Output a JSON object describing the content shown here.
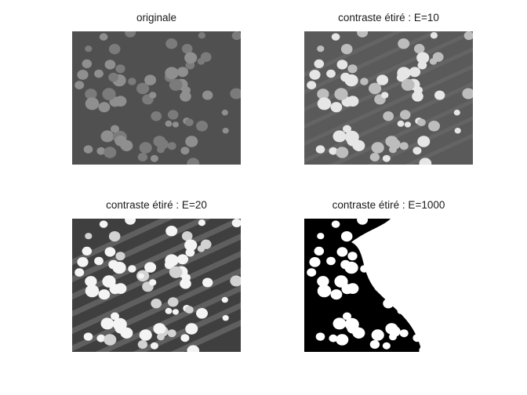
{
  "figure": {
    "panels": [
      {
        "title": "originale",
        "contrast": "low",
        "background_color": "#505050",
        "nucleus_color": "#8a8a8a"
      },
      {
        "title": "contraste étiré : E=10",
        "contrast": "medium",
        "background_color": "#5a5a5a",
        "nucleus_color": "#e6e6e6"
      },
      {
        "title": "contraste étiré : E=20",
        "contrast": "high",
        "background_color": "#3f3f3f",
        "nucleus_color": "#f4f4f4"
      },
      {
        "title": "contraste étiré : E=1000",
        "contrast": "binary",
        "background_color": "#000000",
        "nucleus_color": "#ffffff"
      }
    ]
  }
}
